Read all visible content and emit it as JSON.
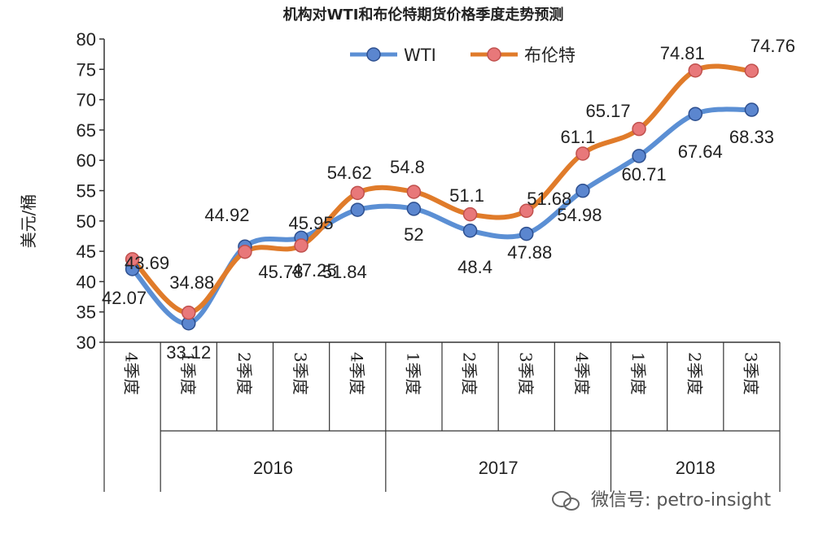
{
  "chart_data": {
    "type": "line",
    "title": "机构对WTI和布伦特期货价格季度走势预测",
    "ylabel": "美元/桶",
    "xlabel": "",
    "ylim": [
      30,
      80
    ],
    "yticks": [
      30,
      35,
      40,
      45,
      50,
      55,
      60,
      65,
      70,
      75,
      80
    ],
    "categories": [
      "4季度",
      "1季度",
      "2季度",
      "3季度",
      "4季度",
      "1季度",
      "2季度",
      "3季度",
      "4季度",
      "1季度",
      "2季度",
      "3季度"
    ],
    "year_groups": [
      {
        "label": "",
        "start": 0,
        "end": 0
      },
      {
        "label": "2016",
        "start": 1,
        "end": 4
      },
      {
        "label": "2017",
        "start": 5,
        "end": 8
      },
      {
        "label": "2018",
        "start": 9,
        "end": 11
      }
    ],
    "series": [
      {
        "name": "WTI",
        "color": "#5b8fd4",
        "marker_color": "#5b86cf",
        "values": [
          42.07,
          33.12,
          45.78,
          47.25,
          51.84,
          52,
          48.4,
          47.88,
          54.98,
          60.71,
          67.64,
          68.33
        ]
      },
      {
        "name": "布伦特",
        "color": "#e07b2a",
        "marker_color": "#e8787a",
        "values": [
          43.69,
          34.88,
          44.92,
          45.95,
          54.62,
          54.8,
          51.1,
          51.68,
          61.1,
          65.17,
          74.81,
          74.76
        ]
      }
    ],
    "legend_position": "top"
  },
  "watermark": {
    "text": "微信号: petro-insight"
  }
}
